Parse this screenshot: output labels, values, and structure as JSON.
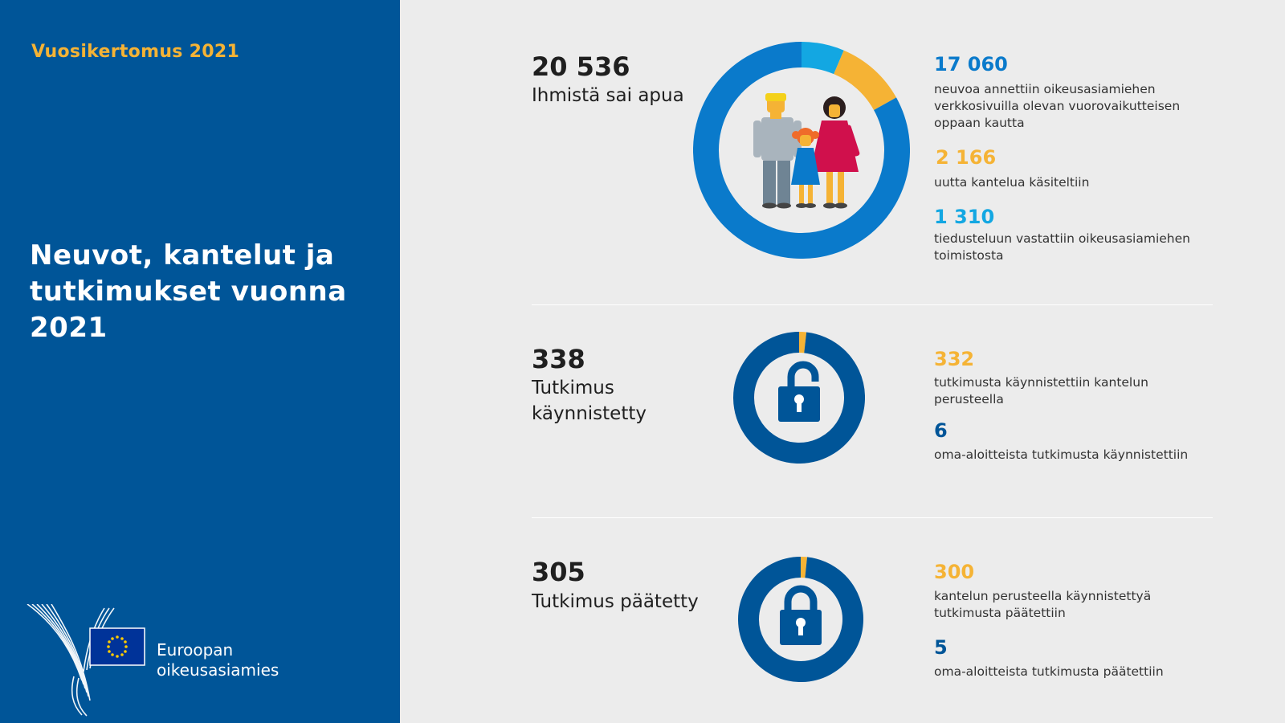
{
  "header": {
    "report_label": "Vuosikertomus 2021",
    "title": "Neuvot, kantelut ja tutkimukset vuonna 2021"
  },
  "logo": {
    "line1": "Euroopan",
    "line2": "oikeusasiamies"
  },
  "colors": {
    "left_panel": "#005598",
    "blue": "#0a7acb",
    "light_blue": "#13a7e2",
    "orange": "#f5b335",
    "dark_blue": "#005598",
    "background": "#ececec"
  },
  "sections": [
    {
      "total": "20 536",
      "label": "Ihmistä sai apua",
      "icon": "family-icon",
      "stats": [
        {
          "value": "17 060",
          "color": "blue",
          "text": "neuvoa annettiin oikeusasiamiehen verkkosivuilla olevan vuorovaikutteisen oppaan kautta"
        },
        {
          "value": "2 166",
          "color": "orange",
          "text": "uutta kantelua käsiteltiin"
        },
        {
          "value": "1 310",
          "color": "light_blue",
          "text": "tiedusteluun vastattiin oikeusasiamiehen toimistosta"
        }
      ]
    },
    {
      "total": "338",
      "label": "Tutkimus käynnistetty",
      "icon": "open-padlock-icon",
      "stats": [
        {
          "value": "332",
          "color": "orange",
          "text": "tutkimusta käynnistettiin kantelun perusteella"
        },
        {
          "value": "6",
          "color": "dark_blue",
          "text": "oma-aloitteista tutkimusta käynnistettiin"
        }
      ]
    },
    {
      "total": "305",
      "label": "Tutkimus päätetty",
      "icon": "closed-padlock-icon",
      "stats": [
        {
          "value": "300",
          "color": "orange",
          "text": "kantelun perusteella käynnistettyä tutkimusta päätettiin"
        },
        {
          "value": "5",
          "color": "dark_blue",
          "text": "oma-aloitteista tutkimusta päätettiin"
        }
      ]
    }
  ],
  "chart_data": [
    {
      "type": "pie",
      "title": "",
      "total": 20536,
      "categories": [
        "17 060",
        "2 166",
        "1 310"
      ],
      "values": [
        17060,
        2166,
        1310
      ],
      "colors": [
        "#0a7acb",
        "#f5b335",
        "#13a7e2"
      ]
    },
    {
      "type": "pie",
      "title": "",
      "total": 338,
      "categories": [
        "332",
        "6"
      ],
      "values": [
        332,
        6
      ],
      "colors": [
        "#005598",
        "#f5b335"
      ]
    },
    {
      "type": "pie",
      "title": "",
      "total": 305,
      "categories": [
        "300",
        "5"
      ],
      "values": [
        300,
        5
      ],
      "colors": [
        "#005598",
        "#f5b335"
      ]
    }
  ]
}
